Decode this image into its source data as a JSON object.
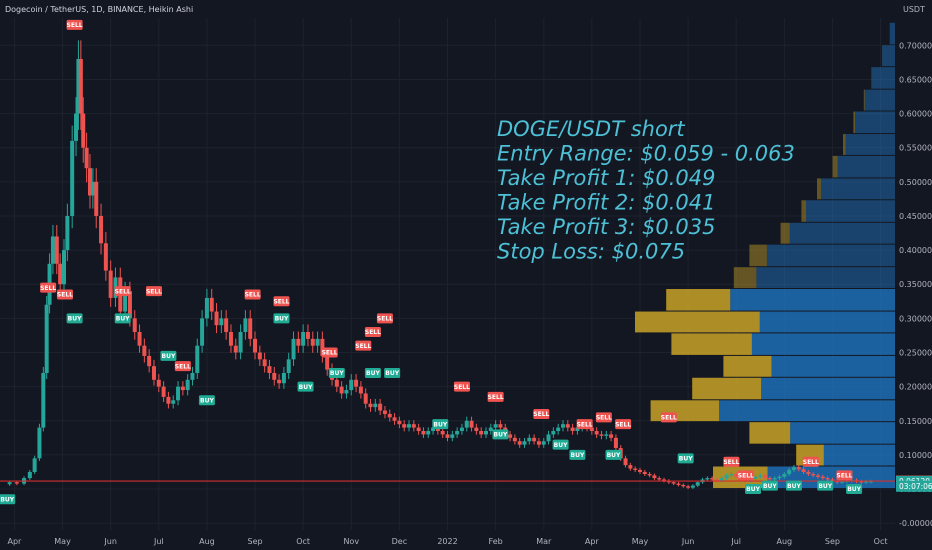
{
  "header": {
    "title": "Dogecoin / TetherUS, 1D, BINANCE, Heikin Ashi",
    "currency": "USDT"
  },
  "colors": {
    "background": "#131722",
    "grid": "#1e222d",
    "up": "#26a69a",
    "down": "#ef5350",
    "vp_gold": "#c9a227",
    "vp_blue": "#1f6fb5",
    "annotation": "#4dc0d6",
    "hline": "#d32f2f"
  },
  "annotation": {
    "lines": [
      "DOGE/USDT short",
      "Entry Range: $0.059 - 0.063",
      "Take Profit 1: $0.049",
      "Take Profit 2: $0.041",
      "Take Profit 3: $0.035",
      "Stop Loss: $0.075"
    ]
  },
  "price_labels": [
    {
      "value": "0.06173",
      "color": "#ef5350",
      "y": 0.06173
    },
    {
      "value": "0.06120",
      "color": "#26a69a",
      "y": 0.0612
    },
    {
      "value": "03:07:06",
      "color": "#26a69a",
      "y": 0.054
    }
  ],
  "chart_data": {
    "type": "candlestick",
    "x_ticks": [
      "Apr",
      "May",
      "Jun",
      "Jul",
      "Aug",
      "Sep",
      "Oct",
      "Nov",
      "Dec",
      "2022",
      "Feb",
      "Mar",
      "Apr",
      "May",
      "Jun",
      "Jul",
      "Aug",
      "Sep",
      "Oct"
    ],
    "y_ticks": [
      0.7,
      0.65,
      0.6,
      0.55,
      0.5,
      0.45,
      0.4,
      0.35,
      0.3,
      0.25,
      0.2,
      0.15,
      0.1,
      0.05,
      0.0
    ],
    "y_tick_labels": [
      "0.70000",
      "0.65000",
      "0.60000",
      "0.55000",
      "0.50000",
      "0.45000",
      "0.40000",
      "0.35000",
      "0.30000",
      "0.25000",
      "0.20000",
      "0.15000",
      "0.10000",
      "0.05000",
      "-0.00000"
    ],
    "ylim": [
      -0.01,
      0.74
    ],
    "x_range_months": [
      0,
      18.6
    ],
    "hline": 0.0617,
    "series_close": [
      [
        0.05,
        0.057
      ],
      [
        0.2,
        0.06
      ],
      [
        0.35,
        0.058
      ],
      [
        0.5,
        0.066
      ],
      [
        0.62,
        0.075
      ],
      [
        0.72,
        0.095
      ],
      [
        0.82,
        0.14
      ],
      [
        0.9,
        0.22
      ],
      [
        0.97,
        0.32
      ],
      [
        1.03,
        0.38
      ],
      [
        1.1,
        0.42
      ],
      [
        1.18,
        0.38
      ],
      [
        1.25,
        0.35
      ],
      [
        1.33,
        0.4
      ],
      [
        1.4,
        0.45
      ],
      [
        1.5,
        0.56
      ],
      [
        1.58,
        0.6
      ],
      [
        1.63,
        0.68
      ],
      [
        1.68,
        0.6
      ],
      [
        1.73,
        0.55
      ],
      [
        1.8,
        0.52
      ],
      [
        1.87,
        0.48
      ],
      [
        1.93,
        0.5
      ],
      [
        2.0,
        0.45
      ],
      [
        2.1,
        0.41
      ],
      [
        2.2,
        0.37
      ],
      [
        2.3,
        0.33
      ],
      [
        2.4,
        0.36
      ],
      [
        2.5,
        0.31
      ],
      [
        2.6,
        0.34
      ],
      [
        2.7,
        0.3
      ],
      [
        2.8,
        0.28
      ],
      [
        2.9,
        0.26
      ],
      [
        3.0,
        0.245
      ],
      [
        3.1,
        0.23
      ],
      [
        3.2,
        0.21
      ],
      [
        3.3,
        0.2
      ],
      [
        3.4,
        0.185
      ],
      [
        3.5,
        0.175
      ],
      [
        3.6,
        0.18
      ],
      [
        3.7,
        0.2
      ],
      [
        3.8,
        0.195
      ],
      [
        3.9,
        0.21
      ],
      [
        4.0,
        0.22
      ],
      [
        4.1,
        0.26
      ],
      [
        4.2,
        0.3
      ],
      [
        4.3,
        0.33
      ],
      [
        4.4,
        0.31
      ],
      [
        4.5,
        0.29
      ],
      [
        4.6,
        0.3
      ],
      [
        4.7,
        0.28
      ],
      [
        4.8,
        0.26
      ],
      [
        4.9,
        0.25
      ],
      [
        5.0,
        0.28
      ],
      [
        5.1,
        0.3
      ],
      [
        5.2,
        0.27
      ],
      [
        5.3,
        0.25
      ],
      [
        5.4,
        0.24
      ],
      [
        5.5,
        0.23
      ],
      [
        5.6,
        0.22
      ],
      [
        5.7,
        0.21
      ],
      [
        5.8,
        0.205
      ],
      [
        5.9,
        0.22
      ],
      [
        6.0,
        0.24
      ],
      [
        6.1,
        0.27
      ],
      [
        6.2,
        0.26
      ],
      [
        6.3,
        0.28
      ],
      [
        6.4,
        0.27
      ],
      [
        6.5,
        0.26
      ],
      [
        6.6,
        0.27
      ],
      [
        6.7,
        0.245
      ],
      [
        6.8,
        0.225
      ],
      [
        6.9,
        0.21
      ],
      [
        7.0,
        0.2
      ],
      [
        7.1,
        0.19
      ],
      [
        7.2,
        0.195
      ],
      [
        7.3,
        0.21
      ],
      [
        7.4,
        0.2
      ],
      [
        7.5,
        0.19
      ],
      [
        7.6,
        0.175
      ],
      [
        7.7,
        0.17
      ],
      [
        7.8,
        0.175
      ],
      [
        7.9,
        0.165
      ],
      [
        8.0,
        0.16
      ],
      [
        8.1,
        0.155
      ],
      [
        8.2,
        0.15
      ],
      [
        8.3,
        0.145
      ],
      [
        8.4,
        0.14
      ],
      [
        8.5,
        0.145
      ],
      [
        8.6,
        0.14
      ],
      [
        8.7,
        0.135
      ],
      [
        8.8,
        0.13
      ],
      [
        8.9,
        0.135
      ],
      [
        9.0,
        0.14
      ],
      [
        9.1,
        0.135
      ],
      [
        9.2,
        0.13
      ],
      [
        9.3,
        0.125
      ],
      [
        9.4,
        0.13
      ],
      [
        9.5,
        0.135
      ],
      [
        9.6,
        0.14
      ],
      [
        9.7,
        0.15
      ],
      [
        9.8,
        0.14
      ],
      [
        9.9,
        0.135
      ],
      [
        10.0,
        0.13
      ],
      [
        10.1,
        0.135
      ],
      [
        10.2,
        0.14
      ],
      [
        10.3,
        0.145
      ],
      [
        10.4,
        0.14
      ],
      [
        10.5,
        0.13
      ],
      [
        10.6,
        0.125
      ],
      [
        10.7,
        0.12
      ],
      [
        10.8,
        0.115
      ],
      [
        10.9,
        0.12
      ],
      [
        11.0,
        0.125
      ],
      [
        11.1,
        0.12
      ],
      [
        11.2,
        0.115
      ],
      [
        11.3,
        0.12
      ],
      [
        11.4,
        0.13
      ],
      [
        11.5,
        0.135
      ],
      [
        11.6,
        0.14
      ],
      [
        11.7,
        0.145
      ],
      [
        11.8,
        0.14
      ],
      [
        11.9,
        0.135
      ],
      [
        12.0,
        0.14
      ],
      [
        12.1,
        0.145
      ],
      [
        12.2,
        0.14
      ],
      [
        12.3,
        0.135
      ],
      [
        12.4,
        0.13
      ],
      [
        12.5,
        0.128
      ],
      [
        12.6,
        0.13
      ],
      [
        12.7,
        0.125
      ],
      [
        12.8,
        0.11
      ],
      [
        12.9,
        0.095
      ],
      [
        13.0,
        0.085
      ],
      [
        13.1,
        0.08
      ],
      [
        13.2,
        0.078
      ],
      [
        13.3,
        0.075
      ],
      [
        13.4,
        0.072
      ],
      [
        13.5,
        0.07
      ],
      [
        13.6,
        0.066
      ],
      [
        13.7,
        0.064
      ],
      [
        13.8,
        0.062
      ],
      [
        13.9,
        0.06
      ],
      [
        14.0,
        0.058
      ],
      [
        14.1,
        0.056
      ],
      [
        14.2,
        0.054
      ],
      [
        14.3,
        0.052
      ],
      [
        14.4,
        0.055
      ],
      [
        14.5,
        0.06
      ],
      [
        14.6,
        0.064
      ],
      [
        14.7,
        0.066
      ],
      [
        14.8,
        0.064
      ],
      [
        14.9,
        0.062
      ],
      [
        15.0,
        0.066
      ],
      [
        15.1,
        0.07
      ],
      [
        15.2,
        0.072
      ],
      [
        15.3,
        0.068
      ],
      [
        15.4,
        0.064
      ],
      [
        15.5,
        0.062
      ],
      [
        15.6,
        0.065
      ],
      [
        15.7,
        0.068
      ],
      [
        15.8,
        0.07
      ],
      [
        15.9,
        0.066
      ],
      [
        16.0,
        0.064
      ],
      [
        16.1,
        0.066
      ],
      [
        16.2,
        0.068
      ],
      [
        16.3,
        0.072
      ],
      [
        16.4,
        0.078
      ],
      [
        16.5,
        0.082
      ],
      [
        16.6,
        0.079
      ],
      [
        16.7,
        0.075
      ],
      [
        16.8,
        0.072
      ],
      [
        16.9,
        0.07
      ],
      [
        17.0,
        0.068
      ],
      [
        17.1,
        0.066
      ],
      [
        17.2,
        0.064
      ],
      [
        17.3,
        0.062
      ],
      [
        17.4,
        0.06
      ],
      [
        17.5,
        0.061
      ],
      [
        17.6,
        0.062
      ],
      [
        17.7,
        0.063
      ],
      [
        17.8,
        0.061
      ],
      [
        17.9,
        0.06
      ],
      [
        18.0,
        0.061
      ],
      [
        18.1,
        0.0612
      ]
    ],
    "signals": [
      {
        "type": "SELL",
        "x": 1.55,
        "y": 0.73
      },
      {
        "type": "BUY",
        "x": 0.15,
        "y": 0.035
      },
      {
        "type": "SELL",
        "x": 1.0,
        "y": 0.345
      },
      {
        "type": "SELL",
        "x": 1.35,
        "y": 0.335
      },
      {
        "type": "BUY",
        "x": 1.55,
        "y": 0.3
      },
      {
        "type": "SELL",
        "x": 2.55,
        "y": 0.34
      },
      {
        "type": "BUY",
        "x": 2.55,
        "y": 0.3
      },
      {
        "type": "SELL",
        "x": 3.2,
        "y": 0.34
      },
      {
        "type": "BUY",
        "x": 3.5,
        "y": 0.245
      },
      {
        "type": "SELL",
        "x": 3.8,
        "y": 0.23
      },
      {
        "type": "BUY",
        "x": 4.3,
        "y": 0.18
      },
      {
        "type": "SELL",
        "x": 5.25,
        "y": 0.335
      },
      {
        "type": "SELL",
        "x": 5.85,
        "y": 0.325
      },
      {
        "type": "BUY",
        "x": 5.85,
        "y": 0.3
      },
      {
        "type": "BUY",
        "x": 6.35,
        "y": 0.2
      },
      {
        "type": "SELL",
        "x": 6.85,
        "y": 0.25
      },
      {
        "type": "BUY",
        "x": 7.0,
        "y": 0.22
      },
      {
        "type": "SELL",
        "x": 7.75,
        "y": 0.28
      },
      {
        "type": "BUY",
        "x": 7.75,
        "y": 0.22
      },
      {
        "type": "SELL",
        "x": 7.55,
        "y": 0.26
      },
      {
        "type": "SELL",
        "x": 8.0,
        "y": 0.3
      },
      {
        "type": "BUY",
        "x": 8.15,
        "y": 0.22
      },
      {
        "type": "SELL",
        "x": 9.6,
        "y": 0.2
      },
      {
        "type": "BUY",
        "x": 9.15,
        "y": 0.145
      },
      {
        "type": "SELL",
        "x": 10.3,
        "y": 0.185
      },
      {
        "type": "BUY",
        "x": 10.4,
        "y": 0.13
      },
      {
        "type": "SELL",
        "x": 11.25,
        "y": 0.16
      },
      {
        "type": "BUY",
        "x": 11.65,
        "y": 0.115
      },
      {
        "type": "SELL",
        "x": 12.15,
        "y": 0.145
      },
      {
        "type": "BUY",
        "x": 12.0,
        "y": 0.1
      },
      {
        "type": "SELL",
        "x": 12.55,
        "y": 0.155
      },
      {
        "type": "BUY",
        "x": 12.75,
        "y": 0.1
      },
      {
        "type": "SELL",
        "x": 12.95,
        "y": 0.145
      },
      {
        "type": "SELL",
        "x": 13.9,
        "y": 0.155
      },
      {
        "type": "BUY",
        "x": 14.25,
        "y": 0.095
      },
      {
        "type": "SELL",
        "x": 15.2,
        "y": 0.09
      },
      {
        "type": "SELL",
        "x": 15.5,
        "y": 0.07
      },
      {
        "type": "BUY",
        "x": 15.65,
        "y": 0.05
      },
      {
        "type": "BUY",
        "x": 16.0,
        "y": 0.055
      },
      {
        "type": "BUY",
        "x": 16.5,
        "y": 0.055
      },
      {
        "type": "SELL",
        "x": 16.85,
        "y": 0.09
      },
      {
        "type": "BUY",
        "x": 17.15,
        "y": 0.055
      },
      {
        "type": "SELL",
        "x": 17.55,
        "y": 0.07
      },
      {
        "type": "BUY",
        "x": 17.75,
        "y": 0.05
      }
    ],
    "volume_profile": [
      {
        "y0": 0.05,
        "y1": 0.083,
        "gold": 0.3,
        "blue": 0.7
      },
      {
        "y0": 0.083,
        "y1": 0.115,
        "gold": 0.28,
        "blue": 0.38
      },
      {
        "y0": 0.115,
        "y1": 0.148,
        "gold": 0.28,
        "blue": 0.56
      },
      {
        "y0": 0.148,
        "y1": 0.18,
        "gold": 0.28,
        "blue": 0.94
      },
      {
        "y0": 0.18,
        "y1": 0.213,
        "gold": 0.34,
        "blue": 0.78
      },
      {
        "y0": 0.213,
        "y1": 0.245,
        "gold": 0.28,
        "blue": 0.66
      },
      {
        "y0": 0.245,
        "y1": 0.278,
        "gold": 0.36,
        "blue": 0.86
      },
      {
        "y0": 0.278,
        "y1": 0.31,
        "gold": 0.48,
        "blue": 1.0
      },
      {
        "y0": 0.31,
        "y1": 0.343,
        "gold": 0.28,
        "blue": 0.88
      },
      {
        "y0": 0.343,
        "y1": 0.375,
        "gold": 0.14,
        "blue": 0.62
      },
      {
        "y0": 0.375,
        "y1": 0.408,
        "gold": 0.12,
        "blue": 0.56
      },
      {
        "y0": 0.408,
        "y1": 0.44,
        "gold": 0.08,
        "blue": 0.44
      },
      {
        "y0": 0.44,
        "y1": 0.473,
        "gold": 0.05,
        "blue": 0.36
      },
      {
        "y0": 0.473,
        "y1": 0.505,
        "gold": 0.05,
        "blue": 0.3
      },
      {
        "y0": 0.505,
        "y1": 0.538,
        "gold": 0.08,
        "blue": 0.24
      },
      {
        "y0": 0.538,
        "y1": 0.57,
        "gold": 0.05,
        "blue": 0.2
      },
      {
        "y0": 0.57,
        "y1": 0.603,
        "gold": 0.04,
        "blue": 0.16
      },
      {
        "y0": 0.603,
        "y1": 0.635,
        "gold": 0.03,
        "blue": 0.12
      },
      {
        "y0": 0.635,
        "y1": 0.668,
        "gold": 0.02,
        "blue": 0.09
      },
      {
        "y0": 0.668,
        "y1": 0.7,
        "gold": 0.01,
        "blue": 0.05
      },
      {
        "y0": 0.7,
        "y1": 0.733,
        "gold": 0.01,
        "blue": 0.02
      }
    ]
  }
}
